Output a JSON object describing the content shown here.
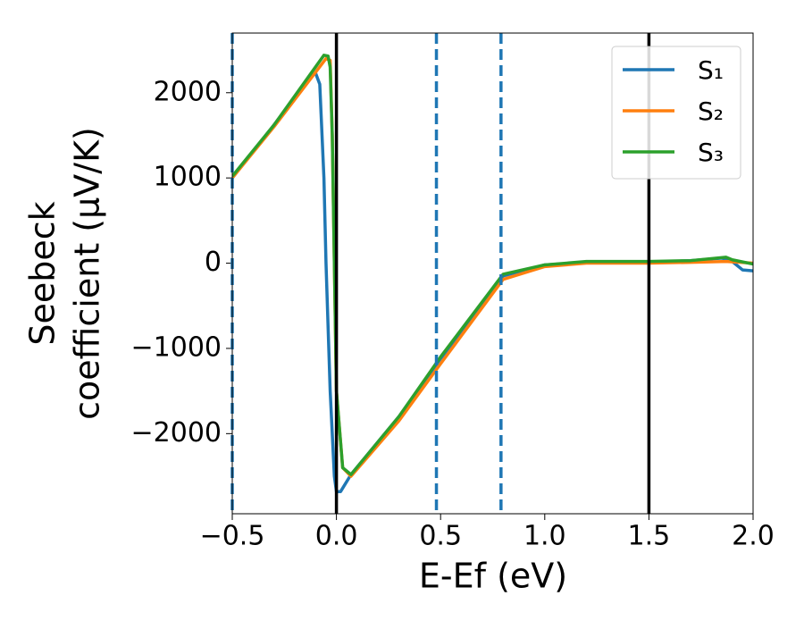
{
  "chart_data": {
    "type": "line",
    "xlabel": "E-Ef (eV)",
    "ylabel": [
      "Seebeck",
      "coefficient  (μV/K)"
    ],
    "xlim": [
      -0.5,
      2.0
    ],
    "ylim": [
      -2940,
      2700
    ],
    "xticks": [
      {
        "value": -0.5,
        "label": "−0.5"
      },
      {
        "value": 0,
        "label": "0.0"
      },
      0.5,
      {
        "value": 1,
        "label": "1.0"
      },
      1.5,
      {
        "value": 2,
        "label": "2.0"
      }
    ],
    "yticks": [
      {
        "value": -2000,
        "label": "−2000"
      },
      {
        "value": -1000,
        "label": "−1000"
      },
      0,
      1000,
      2000
    ],
    "vlines": [
      {
        "x": 0,
        "color": "#000000",
        "dashed": false
      },
      {
        "x": 1.5,
        "color": "#000000",
        "dashed": false
      },
      {
        "x": -0.5,
        "color": "#1f77b4",
        "dashed": true
      },
      {
        "x": 0.48,
        "color": "#1f77b4",
        "dashed": true
      },
      {
        "x": 0.79,
        "color": "#1f77b4",
        "dashed": true
      }
    ],
    "legend": "upper right",
    "series": [
      {
        "name": "S₁",
        "color": "#1f77b4",
        "x": [
          -0.5,
          -0.3,
          -0.12,
          -0.1,
          -0.08,
          -0.06,
          -0.05,
          -0.03,
          -0.01,
          0.0,
          0.02,
          0.07,
          0.3,
          0.5,
          0.8,
          1.0,
          1.2,
          1.5,
          1.7,
          1.85,
          1.9,
          1.95,
          2.0
        ],
        "values": [
          1000,
          1620,
          2200,
          2230,
          2100,
          1000,
          0,
          -1500,
          -2500,
          -2680,
          -2680,
          -2480,
          -1800,
          -1120,
          -150,
          -20,
          10,
          10,
          30,
          60,
          20,
          -80,
          -90
        ]
      },
      {
        "name": "S₂",
        "color": "#ff7f0e",
        "x": [
          -0.5,
          -0.3,
          -0.05,
          -0.03,
          -0.02,
          -0.01,
          0.0,
          0.03,
          0.07,
          0.3,
          0.5,
          0.8,
          1.0,
          1.2,
          1.5,
          1.7,
          1.87,
          2.0
        ],
        "values": [
          1000,
          1600,
          2400,
          2380,
          1500,
          0,
          -1500,
          -2400,
          -2500,
          -1850,
          -1180,
          -190,
          -40,
          0,
          0,
          10,
          20,
          0
        ]
      },
      {
        "name": "S₃",
        "color": "#2ca02c",
        "x": [
          -0.5,
          -0.3,
          -0.06,
          -0.04,
          -0.03,
          -0.02,
          -0.01,
          0.0,
          0.03,
          0.07,
          0.3,
          0.5,
          0.8,
          1.0,
          1.2,
          1.5,
          1.7,
          1.87,
          1.9,
          2.0
        ],
        "values": [
          1020,
          1620,
          2440,
          2430,
          2300,
          1500,
          0,
          -1500,
          -2400,
          -2480,
          -1800,
          -1100,
          -130,
          -20,
          20,
          20,
          30,
          70,
          40,
          -10
        ]
      }
    ]
  }
}
